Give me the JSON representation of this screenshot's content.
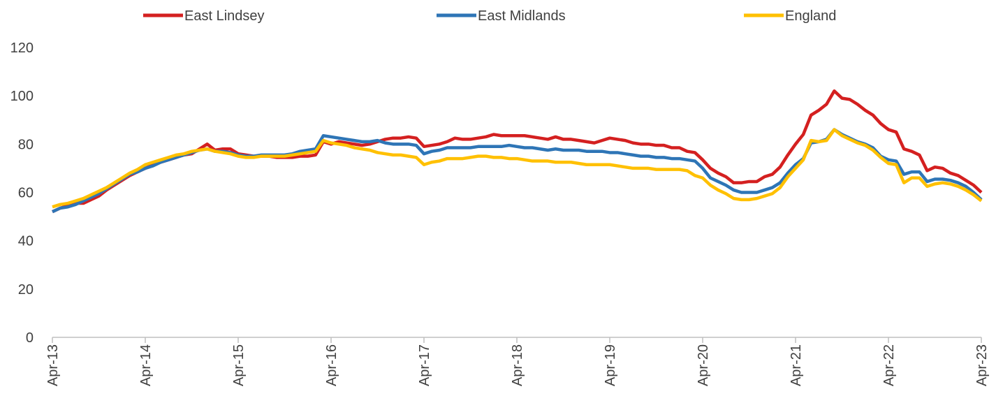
{
  "chart_data": {
    "type": "line",
    "categories": [
      "Apr-13",
      null,
      null,
      null,
      null,
      null,
      null,
      null,
      null,
      null,
      null,
      null,
      "Apr-14",
      null,
      null,
      null,
      null,
      null,
      null,
      null,
      null,
      null,
      null,
      null,
      "Apr-15",
      null,
      null,
      null,
      null,
      null,
      null,
      null,
      null,
      null,
      null,
      null,
      "Apr-16",
      null,
      null,
      null,
      null,
      null,
      null,
      null,
      null,
      null,
      null,
      null,
      "Apr-17",
      null,
      null,
      null,
      null,
      null,
      null,
      null,
      null,
      null,
      null,
      null,
      "Apr-18",
      null,
      null,
      null,
      null,
      null,
      null,
      null,
      null,
      null,
      null,
      null,
      "Apr-19",
      null,
      null,
      null,
      null,
      null,
      null,
      null,
      null,
      null,
      null,
      null,
      "Apr-20",
      null,
      null,
      null,
      null,
      null,
      null,
      null,
      null,
      null,
      null,
      null,
      "Apr-21",
      null,
      null,
      null,
      null,
      null,
      null,
      null,
      null,
      null,
      null,
      null,
      "Apr-22",
      null,
      null,
      null,
      null,
      null,
      null,
      null,
      null,
      null,
      null,
      null,
      "Apr-23"
    ],
    "series": [
      {
        "name": "East Lindsey",
        "color": "#d42020",
        "values": [
          52,
          53.5,
          54.5,
          55.5,
          55.5,
          57,
          58.5,
          61,
          63,
          65,
          67,
          68.5,
          70,
          71.5,
          72.5,
          73.5,
          74.5,
          75.5,
          76,
          78,
          80,
          77.5,
          78,
          78,
          76,
          75.5,
          75,
          75,
          75,
          74.5,
          74.5,
          74.5,
          75,
          75,
          75.5,
          81,
          80,
          81,
          80.5,
          80,
          79.5,
          80,
          81,
          82,
          82.5,
          82.5,
          83,
          82.5,
          79,
          79.5,
          80,
          81,
          82.5,
          82,
          82,
          82.5,
          83,
          84,
          83.5,
          83.5,
          83.5,
          83.5,
          83,
          82.5,
          82,
          83,
          82,
          82,
          81.5,
          81,
          80.5,
          81.5,
          82.5,
          82,
          81.5,
          80.5,
          80,
          80,
          79.5,
          79.5,
          78.5,
          78.5,
          77,
          76.5,
          73.5,
          70,
          68,
          66.5,
          64,
          64,
          64.5,
          64.5,
          66.5,
          67.5,
          70.5,
          75.5,
          80,
          84,
          92,
          94,
          96.5,
          102,
          99,
          98.5,
          96.5,
          94,
          92,
          88.5,
          86,
          85,
          78,
          77,
          75.5,
          69,
          70.5,
          70,
          68,
          67,
          65,
          63,
          60
        ]
      },
      {
        "name": "East Midlands",
        "color": "#2e75b6",
        "values": [
          52,
          53.5,
          54,
          55,
          56.5,
          58,
          59.5,
          61.5,
          63.5,
          65.5,
          67.5,
          68.5,
          70,
          71,
          72.5,
          73.5,
          74.5,
          75.5,
          76.5,
          77.5,
          78,
          77,
          77,
          76.5,
          75.5,
          75,
          75,
          75.5,
          75.5,
          75.5,
          75.5,
          76,
          77,
          77.5,
          78,
          83.5,
          83,
          82.5,
          82,
          81.5,
          81,
          81,
          81.5,
          80.5,
          80,
          80,
          80,
          79.5,
          76,
          77,
          77.5,
          78.5,
          78.5,
          78.5,
          78.5,
          79,
          79,
          79,
          79,
          79.5,
          79,
          78.5,
          78.5,
          78,
          77.5,
          78,
          77.5,
          77.5,
          77.5,
          77,
          77,
          77,
          76.5,
          76.5,
          76,
          75.5,
          75,
          75,
          74.5,
          74.5,
          74,
          74,
          73.5,
          73,
          70,
          66,
          64.5,
          63,
          61,
          60,
          60,
          60,
          61,
          62,
          64,
          68,
          71.5,
          74,
          80.5,
          81,
          82,
          86,
          84,
          82.5,
          81,
          80,
          78.5,
          75,
          73.5,
          73,
          67.5,
          68.5,
          68.5,
          64.5,
          65.5,
          65.5,
          65,
          64,
          62.5,
          60,
          57
        ]
      },
      {
        "name": "England",
        "color": "#ffc000",
        "values": [
          54,
          55,
          55.5,
          56.5,
          57.5,
          59,
          60.5,
          62,
          64,
          66,
          68,
          69.5,
          71.5,
          72.5,
          73.5,
          74.5,
          75.5,
          76,
          77,
          77.5,
          78,
          77,
          76.5,
          76,
          75,
          74.5,
          74.5,
          75,
          75,
          75,
          75,
          75.5,
          76,
          76.5,
          77,
          81.5,
          80.5,
          80,
          79.5,
          78.5,
          78,
          77.5,
          76.5,
          76,
          75.5,
          75.5,
          75,
          74.5,
          71.5,
          72.5,
          73,
          74,
          74,
          74,
          74.5,
          75,
          75,
          74.5,
          74.5,
          74,
          74,
          73.5,
          73,
          73,
          73,
          72.5,
          72.5,
          72.5,
          72,
          71.5,
          71.5,
          71.5,
          71.5,
          71,
          70.5,
          70,
          70,
          70,
          69.5,
          69.5,
          69.5,
          69.5,
          69,
          67,
          66,
          63,
          61,
          59.5,
          57.5,
          57,
          57,
          57.5,
          58.5,
          59.5,
          62,
          66.5,
          70,
          73.5,
          81.5,
          81,
          81.5,
          86,
          83.5,
          82,
          80.5,
          79.5,
          77.5,
          74.5,
          72,
          71.5,
          64,
          66,
          66,
          62.5,
          63.5,
          64,
          63.5,
          62.5,
          61,
          59,
          56.5
        ]
      }
    ],
    "ylim": [
      0,
      120
    ],
    "yticks": [
      0,
      20,
      40,
      60,
      80,
      100,
      120
    ],
    "grid": false,
    "legend": "top"
  }
}
